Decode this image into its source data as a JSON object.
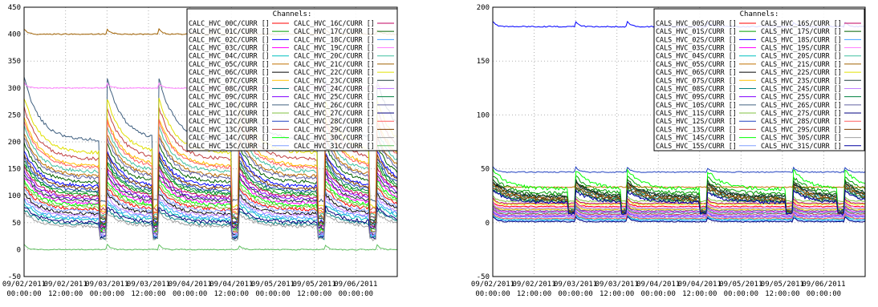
{
  "chart_data": [
    {
      "type": "line",
      "ylim": [
        -50,
        450
      ],
      "yticks": [
        -50,
        0,
        50,
        100,
        150,
        200,
        250,
        300,
        350,
        400,
        450
      ],
      "xlim": [
        "2011-09-02 00:00:00",
        "2011-09-06 12:00:00"
      ],
      "xtick_labels": [
        {
          "date": "09/02/2011",
          "time": "00:00:00"
        },
        {
          "date": "09/02/2011",
          "time": "12:00:00"
        },
        {
          "date": "09/03/2011",
          "time": "00:00:00"
        },
        {
          "date": "09/03/2011",
          "time": "12:00:00"
        },
        {
          "date": "09/04/2011",
          "time": "00:00:00"
        },
        {
          "date": "09/04/2011",
          "time": "12:00:00"
        },
        {
          "date": "09/05/2011",
          "time": "00:00:00"
        },
        {
          "date": "09/05/2011",
          "time": "12:00:00"
        },
        {
          "date": "09/06/2011",
          "time": "00:00:00"
        }
      ],
      "grid": true,
      "legend_placement": "top-right",
      "legend_title": "Channels:",
      "cycle_starts_hours": [
        0,
        24,
        39,
        62,
        87,
        102
      ],
      "series": [
        {
          "name": "CALC_HVC_00C/CURR []",
          "color": "#ff0000",
          "level": 95
        },
        {
          "name": "CALC_HVC_01C/CURR []",
          "color": "#00a000",
          "level": 130
        },
        {
          "name": "CALC_HVC_02C/CURR []",
          "color": "#0000ff",
          "level": 150
        },
        {
          "name": "CALC_HVC_03C/CURR []",
          "color": "#ff00ff",
          "level": 110
        },
        {
          "name": "CALC_HVC_04C/CURR []",
          "color": "#00c0c0",
          "level": 70
        },
        {
          "name": "CALC_HVC_05C/CURR []",
          "color": "#c07000",
          "level": 175
        },
        {
          "name": "CALC_HVC_06C/CURR []",
          "color": "#000000",
          "level": 85
        },
        {
          "name": "CALC_HVC_07C/CURR []",
          "color": "#ffc000",
          "level": 200
        },
        {
          "name": "CALC_HVC_08C/CURR []",
          "color": "#008080",
          "level": 60
        },
        {
          "name": "CALC_HVC_09C/CURR []",
          "color": "#8000ff",
          "level": 120
        },
        {
          "name": "CALC_HVC_10C/CURR []",
          "color": "#406080",
          "level": 260
        },
        {
          "name": "CALC_HVC_11C/CURR []",
          "color": "#80c040",
          "level": 100
        },
        {
          "name": "CALC_HVC_12C/CURR []",
          "color": "#2040c0",
          "level": 140
        },
        {
          "name": "CALC_HVC_13C/CURR []",
          "color": "#c04040",
          "level": 215
        },
        {
          "name": "CALC_HVC_14C/CURR []",
          "color": "#00ff00",
          "level": 105
        },
        {
          "name": "CALC_HVC_15C/CURR []",
          "color": "#80a0ff",
          "level": 90
        },
        {
          "name": "CALC_HVC_16C/CURR []",
          "color": "#c00060",
          "level": 125
        },
        {
          "name": "CALC_HVC_17C/CURR []",
          "color": "#006000",
          "level": 160
        },
        {
          "name": "CALC_HVC_18C/CURR []",
          "color": "#40a0ff",
          "level": 75
        },
        {
          "name": "CALC_HVC_19C/CURR []",
          "color": "#ff80ff",
          "level": 300,
          "flat": true
        },
        {
          "name": "CALC_HVC_20C/CURR []",
          "color": "#40c0a0",
          "level": 185
        },
        {
          "name": "CALC_HVC_21C/CURR []",
          "color": "#a06000",
          "level": 400,
          "flat": true
        },
        {
          "name": "CALC_HVC_22C/CURR []",
          "color": "#e0e000",
          "level": 230
        },
        {
          "name": "CALC_HVC_23C/CURR []",
          "color": "#204040",
          "level": 115
        },
        {
          "name": "CALC_HVC_24C/CURR []",
          "color": "#c080ff",
          "level": 80
        },
        {
          "name": "CALC_HVC_25C/CURR []",
          "color": "#008040",
          "level": 135
        },
        {
          "name": "CALC_HVC_26C/CURR []",
          "color": "#6060a0",
          "level": 170
        },
        {
          "name": "CALC_HVC_27C/CURR []",
          "color": "#000080",
          "level": 65
        },
        {
          "name": "CALC_HVC_28C/CURR []",
          "color": "#ff6060",
          "level": 195
        },
        {
          "name": "CALC_HVC_29C/CURR []",
          "color": "#804000",
          "level": 145
        },
        {
          "name": "CALC_HVC_30C/CURR []",
          "color": "#a0a0a0",
          "level": 55
        },
        {
          "name": "CALC_HVC_31C/CURR []",
          "color": "#60c060",
          "level": 0,
          "flat": true
        }
      ]
    },
    {
      "type": "line",
      "ylim": [
        -50,
        200
      ],
      "yticks": [
        -50,
        0,
        50,
        100,
        150,
        200
      ],
      "xlim": [
        "2011-09-02 00:00:00",
        "2011-09-06 12:00:00"
      ],
      "xtick_labels": [
        {
          "date": "09/02/2011",
          "time": "00:00:00"
        },
        {
          "date": "09/02/2011",
          "time": "12:00:00"
        },
        {
          "date": "09/03/2011",
          "time": "00:00:00"
        },
        {
          "date": "09/03/2011",
          "time": "12:00:00"
        },
        {
          "date": "09/04/2011",
          "time": "00:00:00"
        },
        {
          "date": "09/04/2011",
          "time": "12:00:00"
        },
        {
          "date": "09/05/2011",
          "time": "00:00:00"
        },
        {
          "date": "09/05/2011",
          "time": "12:00:00"
        },
        {
          "date": "09/06/2011",
          "time": "00:00:00"
        }
      ],
      "grid": true,
      "legend_placement": "top-right",
      "legend_title": "Channels:",
      "cycle_starts_hours": [
        0,
        24,
        39,
        62,
        87,
        102
      ],
      "series": [
        {
          "name": "CALS_HVC_00S/CURR []",
          "color": "#ff0000",
          "level": 15,
          "flat": true
        },
        {
          "name": "CALS_HVC_01S/CURR []",
          "color": "#00a000",
          "level": 35
        },
        {
          "name": "CALS_HVC_02S/CURR []",
          "color": "#0000ff",
          "level": 182,
          "flat": true
        },
        {
          "name": "CALS_HVC_03S/CURR []",
          "color": "#ff00ff",
          "level": 10,
          "flat": true
        },
        {
          "name": "CALS_HVC_04S/CURR []",
          "color": "#00c0c0",
          "level": 3,
          "flat": true
        },
        {
          "name": "CALS_HVC_05S/CURR []",
          "color": "#c07000",
          "level": 33,
          "flat": true
        },
        {
          "name": "CALS_HVC_06S/CURR []",
          "color": "#000000",
          "level": 30
        },
        {
          "name": "CALS_HVC_07S/CURR []",
          "color": "#ffc000",
          "level": 12,
          "flat": true
        },
        {
          "name": "CALS_HVC_08S/CURR []",
          "color": "#008080",
          "level": 28
        },
        {
          "name": "CALS_HVC_09S/CURR []",
          "color": "#8000ff",
          "level": 6,
          "flat": true
        },
        {
          "name": "CALS_HVC_10S/CURR []",
          "color": "#406080",
          "level": 25
        },
        {
          "name": "CALS_HVC_11S/CURR []",
          "color": "#80c040",
          "level": 20,
          "flat": true
        },
        {
          "name": "CALS_HVC_12S/CURR []",
          "color": "#2040c0",
          "level": 47,
          "flat": true
        },
        {
          "name": "CALS_HVC_13S/CURR []",
          "color": "#c04040",
          "level": 8,
          "flat": true
        },
        {
          "name": "CALS_HVC_14S/CURR []",
          "color": "#00ff00",
          "level": 40
        },
        {
          "name": "CALS_HVC_15S/CURR []",
          "color": "#80a0ff",
          "level": 5,
          "flat": true
        },
        {
          "name": "CALS_HVC_16S/CURR []",
          "color": "#c00060",
          "level": 18,
          "flat": true
        },
        {
          "name": "CALS_HVC_17S/CURR []",
          "color": "#006000",
          "level": 32
        },
        {
          "name": "CALS_HVC_18S/CURR []",
          "color": "#40a0ff",
          "level": 2,
          "flat": true
        },
        {
          "name": "CALS_HVC_19S/CURR []",
          "color": "#ff80ff",
          "level": 14,
          "flat": true
        },
        {
          "name": "CALS_HVC_20S/CURR []",
          "color": "#40c0a0",
          "level": 9,
          "flat": true
        },
        {
          "name": "CALS_HVC_21S/CURR []",
          "color": "#a06000",
          "level": 29
        },
        {
          "name": "CALS_HVC_22S/CURR []",
          "color": "#e0e000",
          "level": 17,
          "flat": true
        },
        {
          "name": "CALS_HVC_23S/CURR []",
          "color": "#204040",
          "level": 31
        },
        {
          "name": "CALS_HVC_24S/CURR []",
          "color": "#c080ff",
          "level": 7,
          "flat": true
        },
        {
          "name": "CALS_HVC_25S/CURR []",
          "color": "#008040",
          "level": 26
        },
        {
          "name": "CALS_HVC_26S/CURR []",
          "color": "#6060a0",
          "level": 11,
          "flat": true
        },
        {
          "name": "CALS_HVC_27S/CURR []",
          "color": "#000080",
          "level": 1,
          "flat": true
        },
        {
          "name": "CALS_HVC_28S/CURR []",
          "color": "#ff6060",
          "level": 4,
          "flat": true
        },
        {
          "name": "CALS_HVC_29S/CURR []",
          "color": "#804000",
          "level": 27
        },
        {
          "name": "CALS_HVC_30S/CURR []",
          "color": "#a0a0a0",
          "level": 13,
          "flat": true
        },
        {
          "name": "CALS_HVC_31S/CURR []",
          "color": "#0000a0",
          "level": 24
        }
      ]
    }
  ]
}
